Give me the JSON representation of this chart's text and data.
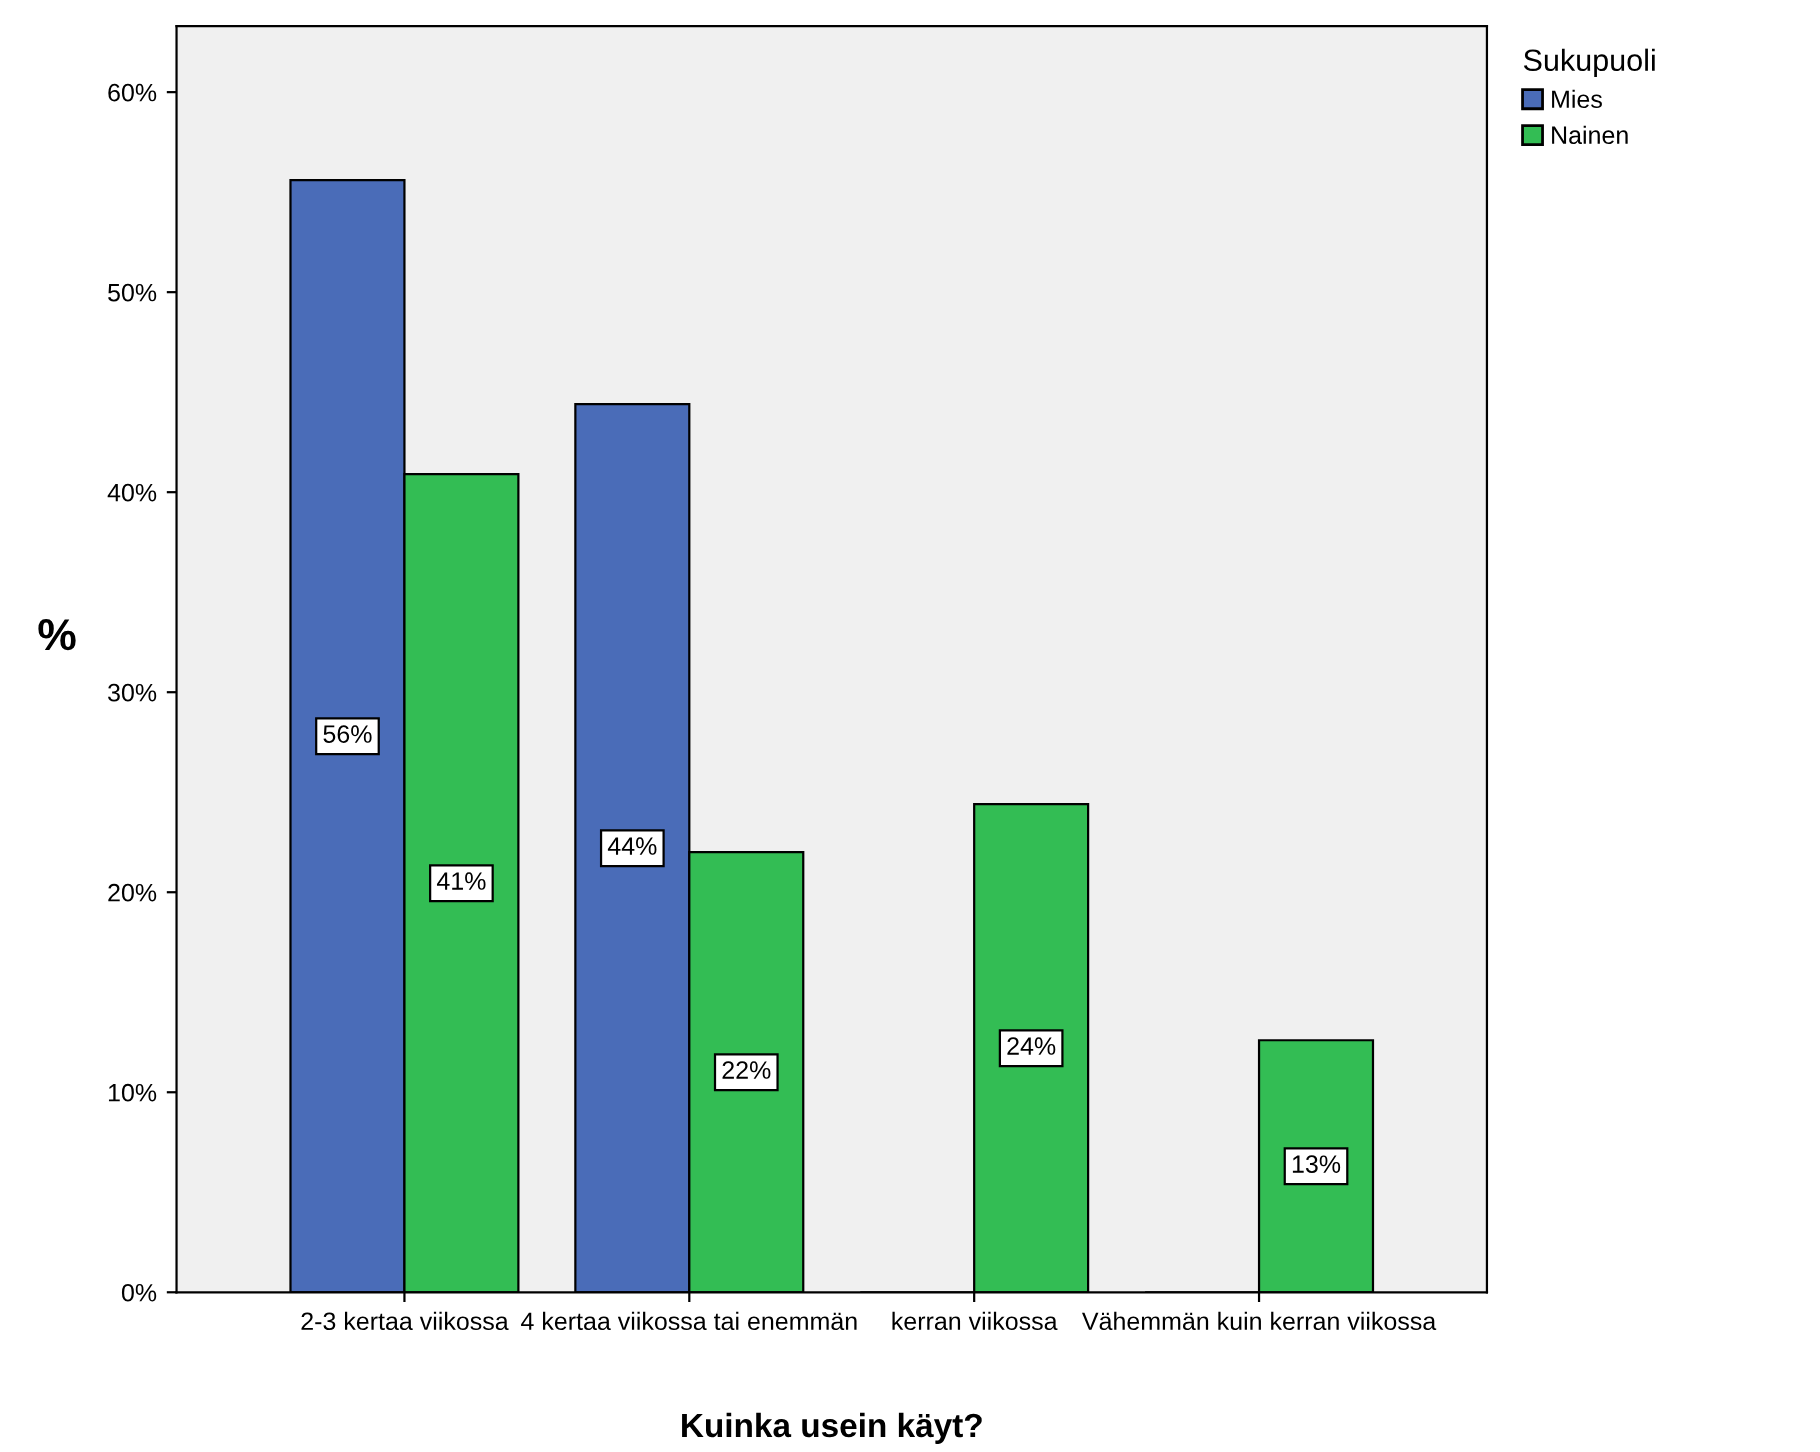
{
  "chart_data": {
    "type": "bar",
    "categories": [
      "2-3 kertaa viikossa",
      "4 kertaa viikossa tai enemmän",
      "kerran viikossa",
      "Vähemmän kuin kerran viikossa"
    ],
    "series": [
      {
        "name": "Mies",
        "color": "#4a6cb8",
        "values": [
          55.6,
          44.4,
          0,
          0
        ],
        "value_labels": [
          "56%",
          "44%",
          null,
          null
        ]
      },
      {
        "name": "Nainen",
        "color": "#33bd54",
        "values": [
          40.9,
          22.0,
          24.4,
          12.6
        ],
        "value_labels": [
          "41%",
          "22%",
          "24%",
          "13%"
        ]
      }
    ],
    "xlabel": "Kuinka usein käyt?",
    "ylabel": "%",
    "legend_title": "Sukupuoli",
    "legend": "top right",
    "ylim": [
      0,
      63.3
    ],
    "yticks": [
      {
        "value": 0,
        "label": "0%"
      },
      {
        "value": 10,
        "label": "10%"
      },
      {
        "value": 20,
        "label": "20%"
      },
      {
        "value": 30,
        "label": "30%"
      },
      {
        "value": 40,
        "label": "40%"
      },
      {
        "value": 50,
        "label": "50%"
      },
      {
        "value": 60,
        "label": "60%"
      }
    ],
    "grid": false
  }
}
